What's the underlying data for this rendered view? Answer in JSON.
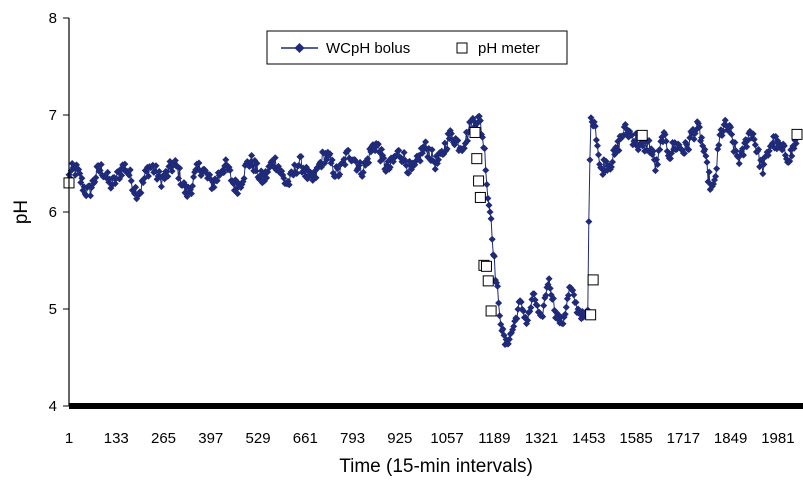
{
  "chart_data": {
    "type": "line",
    "title": "",
    "xlabel": "Time (15-min intervals)",
    "ylabel": "pH",
    "xlim": [
      1,
      2050
    ],
    "ylim": [
      4,
      8
    ],
    "x_ticks": [
      "1",
      "133",
      "265",
      "397",
      "529",
      "661",
      "793",
      "925",
      "1057",
      "1189",
      "1321",
      "1453",
      "1585",
      "1717",
      "1849",
      "1981"
    ],
    "y_ticks": [
      "4",
      "5",
      "6",
      "7",
      "8"
    ],
    "legend": {
      "placement": "top-center",
      "entries": [
        "WCpH bolus",
        "pH meter"
      ]
    },
    "colors": {
      "bolus": "#1f2a78",
      "meter_fill": "#ffffff",
      "meter_stroke": "#000000"
    },
    "series": [
      {
        "name": "WCpH bolus",
        "marker": "diamond",
        "keypoints": {
          "x": [
            1,
            60,
            130,
            200,
            265,
            330,
            397,
            460,
            529,
            600,
            661,
            730,
            793,
            860,
            925,
            990,
            1057,
            1100,
            1130,
            1150,
            1160,
            1165,
            1170,
            1180,
            1190,
            1200,
            1210,
            1220,
            1240,
            1260,
            1280,
            1300,
            1320,
            1340,
            1360,
            1380,
            1400,
            1420,
            1440,
            1450,
            1455,
            1460,
            1470,
            1485,
            1500,
            1520,
            1540,
            1560,
            1585,
            1600,
            1620,
            1640,
            1660,
            1680,
            1700,
            1717,
            1740,
            1760,
            1780,
            1800,
            1820,
            1849,
            1880,
            1910,
            1940,
            1960,
            1981,
            2000,
            2020,
            2040
          ],
          "y": [
            6.35,
            6.3,
            6.4,
            6.3,
            6.45,
            6.3,
            6.4,
            6.35,
            6.45,
            6.4,
            6.4,
            6.5,
            6.5,
            6.6,
            6.5,
            6.55,
            6.65,
            6.8,
            6.85,
            6.9,
            6.75,
            6.6,
            6.3,
            6.0,
            5.4,
            5.0,
            4.75,
            4.62,
            4.85,
            5.05,
            4.8,
            5.2,
            4.9,
            5.25,
            4.95,
            4.92,
            5.2,
            4.95,
            4.95,
            5.05,
            6.6,
            7.05,
            6.9,
            6.3,
            6.5,
            6.65,
            6.7,
            6.75,
            6.85,
            6.7,
            6.6,
            6.45,
            6.9,
            6.55,
            6.6,
            6.7,
            6.85,
            6.75,
            6.5,
            6.3,
            6.75,
            6.8,
            6.6,
            6.75,
            6.55,
            6.65,
            6.6,
            6.7,
            6.65,
            6.7
          ]
        }
      },
      {
        "name": "pH meter",
        "marker": "square",
        "x": [
          1,
          1135,
          1140,
          1145,
          1150,
          1160,
          1167,
          1172,
          1180,
          1458,
          1465,
          1602,
          2040
        ],
        "y": [
          6.3,
          6.82,
          6.55,
          6.32,
          6.15,
          5.45,
          5.44,
          5.29,
          4.98,
          4.94,
          5.3,
          6.79,
          6.8
        ]
      }
    ]
  }
}
